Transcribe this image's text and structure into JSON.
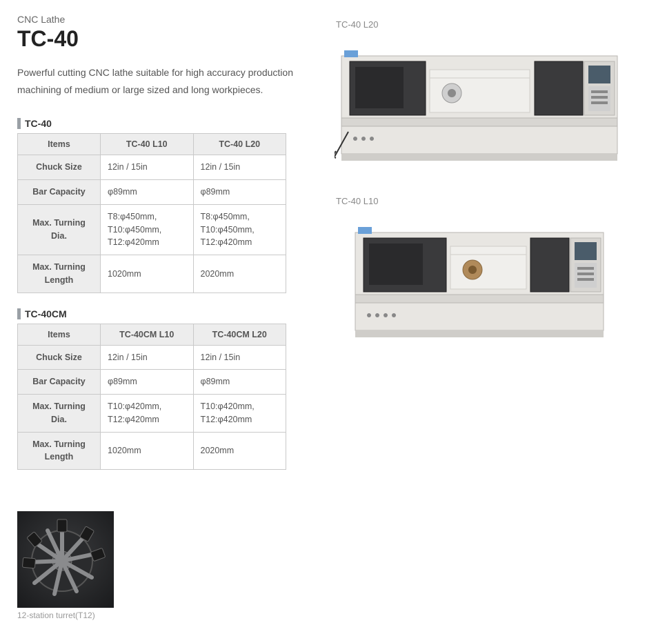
{
  "header": {
    "category": "CNC Lathe",
    "model": "TC-40",
    "description": "Powerful cutting CNC lathe suitable for high accuracy production machining of medium or large sized and long workpieces."
  },
  "tables": [
    {
      "title": "TC-40",
      "columns": [
        "TC-40 L10",
        "TC-40 L20"
      ],
      "rows": [
        {
          "label": "Chuck Size",
          "c1": "12in / 15in",
          "c2": "12in / 15in"
        },
        {
          "label": "Bar Capacity",
          "c1": "φ89mm",
          "c2": "φ89mm"
        },
        {
          "label": "Max. Turning Dia.",
          "c1": "T8:φ450mm,\nT10:φ450mm,\nT12:φ420mm",
          "c2": "T8:φ450mm,\nT10:φ450mm,\nT12:φ420mm"
        },
        {
          "label": "Max. Turning\nLength",
          "c1": "1020mm",
          "c2": "2020mm"
        }
      ]
    },
    {
      "title": "TC-40CM",
      "columns": [
        "TC-40CM L10",
        "TC-40CM L20"
      ],
      "rows": [
        {
          "label": "Chuck Size",
          "c1": "12in / 15in",
          "c2": "12in / 15in"
        },
        {
          "label": "Bar Capacity",
          "c1": "φ89mm",
          "c2": "φ89mm"
        },
        {
          "label": "Max. Turning Dia.",
          "c1": "T10:φ420mm,\nT12:φ420mm",
          "c2": "T10:φ420mm,\nT12:φ420mm"
        },
        {
          "label": "Max. Turning\nLength",
          "c1": "1020mm",
          "c2": "2020mm"
        }
      ]
    }
  ],
  "figures": {
    "top": {
      "caption": "TC-40 L20"
    },
    "bottom": {
      "caption": "TC-40 L10"
    },
    "turret": {
      "caption": "12-station turret(T12)"
    }
  },
  "colors": {
    "machine_body": "#e8e6e2",
    "machine_body_stroke": "#b8b6b2",
    "machine_dark": "#3a3a3c",
    "machine_dark_stroke": "#1f1f20",
    "machine_panel": "#d8d6d2",
    "machine_screen": "#4a5c6a",
    "machine_button_row": "#cfcfcf",
    "figure_caption": "#888888",
    "turret_bg_dark": "#1b1c1e",
    "turret_bg_mid": "#3a3b3d",
    "turret_highlight": "#8a8b8d",
    "table_border": "#c9c9c9",
    "table_header_bg": "#ededed"
  }
}
